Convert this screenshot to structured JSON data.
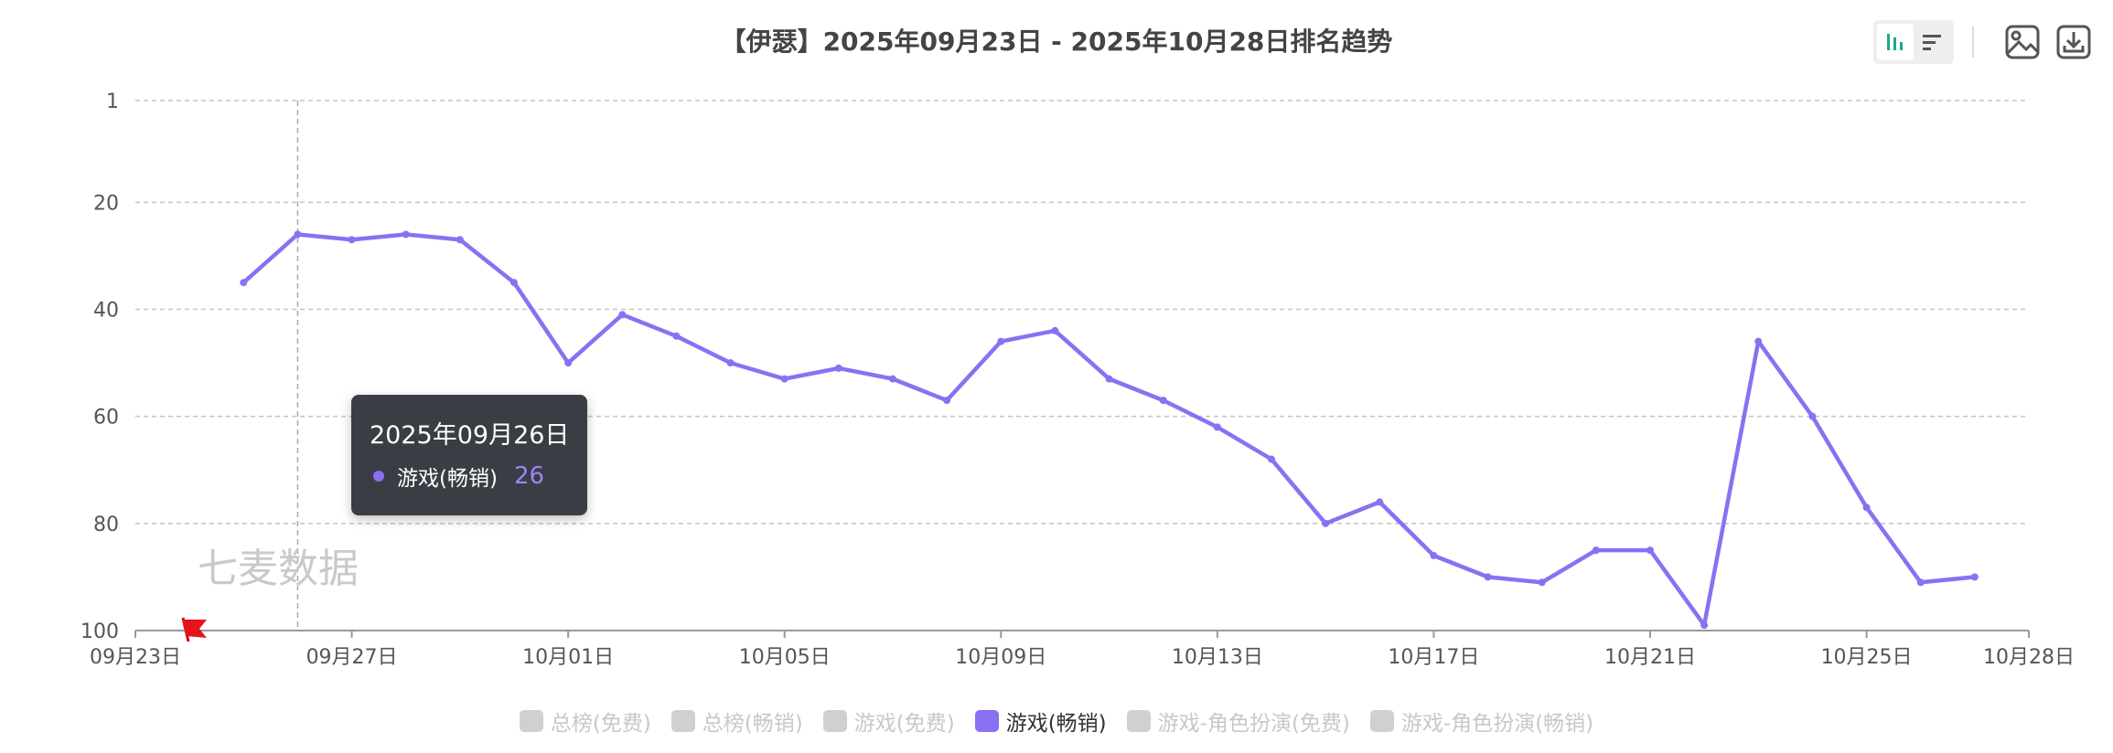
{
  "chart_data": {
    "type": "line",
    "title": "【伊瑟】2025年09月23日 - 2025年10月28日排名趋势",
    "y_axis": {
      "reversed": true,
      "ticks": [
        1,
        20,
        40,
        60,
        80,
        100
      ],
      "min": 1,
      "max": 100
    },
    "x_axis": {
      "start": "2025-09-23",
      "end": "2025-10-28",
      "tick_labels": [
        {
          "date": "2025-09-23",
          "label": "09月23日"
        },
        {
          "date": "2025-09-27",
          "label": "09月27日"
        },
        {
          "date": "2025-10-01",
          "label": "10月01日"
        },
        {
          "date": "2025-10-05",
          "label": "10月05日"
        },
        {
          "date": "2025-10-09",
          "label": "10月09日"
        },
        {
          "date": "2025-10-13",
          "label": "10月13日"
        },
        {
          "date": "2025-10-17",
          "label": "10月17日"
        },
        {
          "date": "2025-10-21",
          "label": "10月21日"
        },
        {
          "date": "2025-10-25",
          "label": "10月25日"
        },
        {
          "date": "2025-10-28",
          "label": "10月28日"
        }
      ]
    },
    "grid": true,
    "series": [
      {
        "name": "游戏(畅销)",
        "color": "#8a70f2",
        "points": [
          {
            "date": "2025-09-25",
            "rank": 35
          },
          {
            "date": "2025-09-26",
            "rank": 26
          },
          {
            "date": "2025-09-27",
            "rank": 27
          },
          {
            "date": "2025-09-28",
            "rank": 26
          },
          {
            "date": "2025-09-29",
            "rank": 27
          },
          {
            "date": "2025-09-30",
            "rank": 35
          },
          {
            "date": "2025-10-01",
            "rank": 50
          },
          {
            "date": "2025-10-02",
            "rank": 41
          },
          {
            "date": "2025-10-03",
            "rank": 45
          },
          {
            "date": "2025-10-04",
            "rank": 50
          },
          {
            "date": "2025-10-05",
            "rank": 53
          },
          {
            "date": "2025-10-06",
            "rank": 51
          },
          {
            "date": "2025-10-07",
            "rank": 53
          },
          {
            "date": "2025-10-08",
            "rank": 57
          },
          {
            "date": "2025-10-09",
            "rank": 46
          },
          {
            "date": "2025-10-10",
            "rank": 44
          },
          {
            "date": "2025-10-11",
            "rank": 53
          },
          {
            "date": "2025-10-12",
            "rank": 57
          },
          {
            "date": "2025-10-13",
            "rank": 62
          },
          {
            "date": "2025-10-14",
            "rank": 68
          },
          {
            "date": "2025-10-15",
            "rank": 80
          },
          {
            "date": "2025-10-16",
            "rank": 76
          },
          {
            "date": "2025-10-17",
            "rank": 86
          },
          {
            "date": "2025-10-18",
            "rank": 90
          },
          {
            "date": "2025-10-19",
            "rank": 91
          },
          {
            "date": "2025-10-20",
            "rank": 85
          },
          {
            "date": "2025-10-21",
            "rank": 85
          },
          {
            "date": "2025-10-22",
            "rank": 99
          },
          {
            "date": "2025-10-23",
            "rank": 46
          },
          {
            "date": "2025-10-24",
            "rank": 60
          },
          {
            "date": "2025-10-25",
            "rank": 77
          },
          {
            "date": "2025-10-26",
            "rank": 91
          },
          {
            "date": "2025-10-27",
            "rank": 90
          }
        ]
      }
    ],
    "legend": {
      "placement": "bottom-center",
      "items": [
        {
          "label": "总榜(免费)",
          "active": false
        },
        {
          "label": "总榜(畅销)",
          "active": false
        },
        {
          "label": "游戏(免费)",
          "active": false
        },
        {
          "label": "游戏(畅销)",
          "active": true
        },
        {
          "label": "游戏-角色扮演(免费)",
          "active": false
        },
        {
          "label": "游戏-角色扮演(畅销)",
          "active": false
        }
      ]
    },
    "tooltip": {
      "date_label": "2025年09月26日",
      "series_label": "游戏(畅销)",
      "value": "26",
      "hover_date": "2025-09-26"
    }
  },
  "watermark": "七麦数据",
  "colors": {
    "accent": "#8a70f2",
    "active_toggle": "#1aa98b"
  },
  "toolbar": {
    "icons": [
      "bar-chart-icon",
      "list-icon",
      "image-icon",
      "download-icon"
    ]
  }
}
